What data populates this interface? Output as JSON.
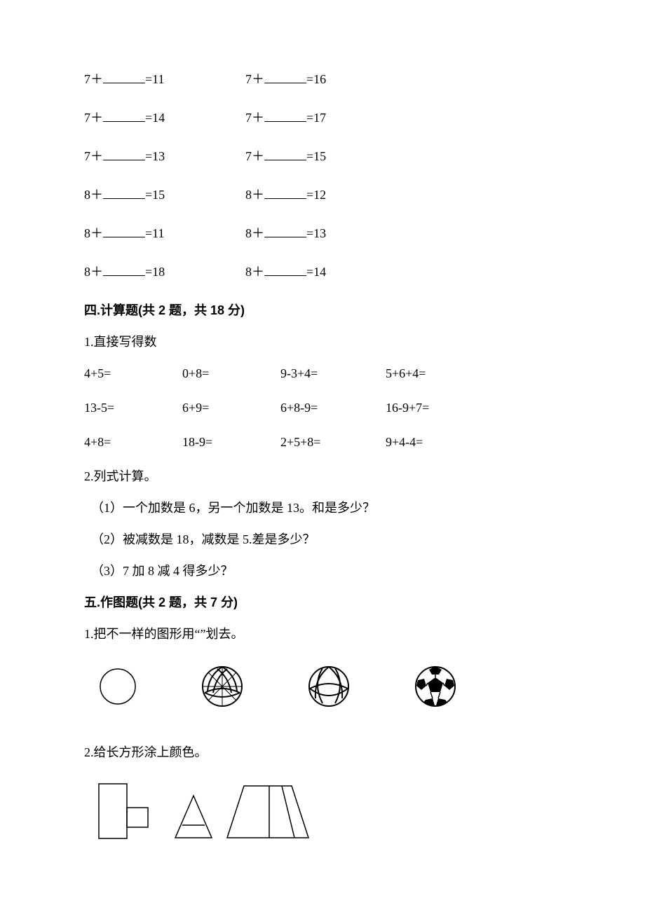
{
  "fillIn": {
    "rows": [
      {
        "a": "7＋",
        "r1": "=11",
        "b": "7＋",
        "r2": "=16"
      },
      {
        "a": "7＋",
        "r1": "=14",
        "b": "7＋",
        "r2": "=17"
      },
      {
        "a": "7＋",
        "r1": "=13",
        "b": "7＋",
        "r2": "=15"
      },
      {
        "a": "8＋",
        "r1": "=15",
        "b": "8＋",
        "r2": "=12"
      },
      {
        "a": "8＋",
        "r1": "=11",
        "b": "8＋",
        "r2": "=13"
      },
      {
        "a": "8＋",
        "r1": "=18",
        "b": "8＋",
        "r2": "=14"
      }
    ]
  },
  "sectionFour": {
    "title": "四.计算题(共 2 题，共 18 分)",
    "q1": "1.直接写得数",
    "grid": [
      [
        "4+5=",
        "0+8=",
        "9-3+4=",
        "5+6+4="
      ],
      [
        "13-5=",
        "6+9=",
        "6+8-9=",
        "16-9+7="
      ],
      [
        "4+8=",
        "18-9=",
        "2+5+8=",
        "9+4-4="
      ]
    ],
    "q2": "2.列式计算。",
    "items": [
      "（1）一个加数是 6，另一个加数是 13。和是多少？",
      "（2）被减数是 18，减数是 5.差是多少？",
      "（3）7 加 8 减 4 得多少？"
    ]
  },
  "sectionFive": {
    "title": "五.作图题(共 2 题，共 7 分)",
    "q1": "1.把不一样的图形用“”划去。",
    "q2": "2.给长方形涂上颜色。"
  },
  "styling": {
    "blankWidth": 60,
    "fontSize": 18,
    "textColor": "#000000",
    "background": "#ffffff",
    "lineColor": "#000000"
  }
}
